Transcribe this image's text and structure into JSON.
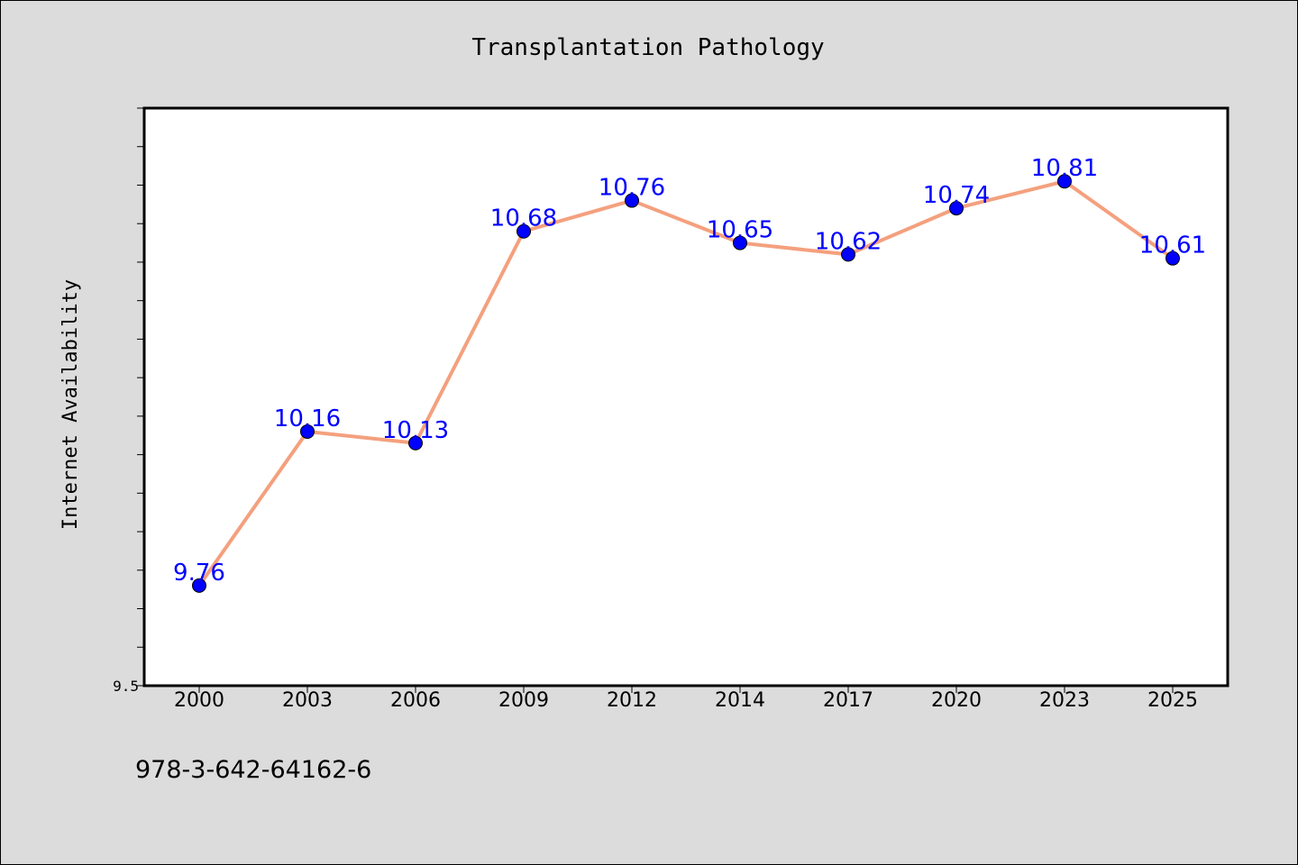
{
  "chart_data": {
    "type": "line",
    "title": "Transplantation Pathology",
    "xlabel": "",
    "ylabel": "Internet Availability",
    "categories": [
      "2000",
      "2003",
      "2006",
      "2009",
      "2012",
      "2014",
      "2017",
      "2020",
      "2023",
      "2025"
    ],
    "series": [
      {
        "values": [
          9.76,
          10.16,
          10.13,
          10.68,
          10.76,
          10.65,
          10.62,
          10.74,
          10.81,
          10.61
        ],
        "labels": [
          "9.76",
          "10.16",
          "10.13",
          "10.68",
          "10.76",
          "10.65",
          "10.62",
          "10.74",
          "10.81",
          "10.61"
        ]
      }
    ],
    "ylim": [
      9.5,
      11.0
    ],
    "ytick_labels": [
      "9.5"
    ],
    "grid": false,
    "legend": "none",
    "colors": {
      "line": "#f4a07e",
      "marker": "#0000ff",
      "data_label": "#0000ff",
      "background": "#dcdcdc",
      "plot_background": "#ffffff"
    }
  },
  "footer_text": "978-3-642-64162-6"
}
